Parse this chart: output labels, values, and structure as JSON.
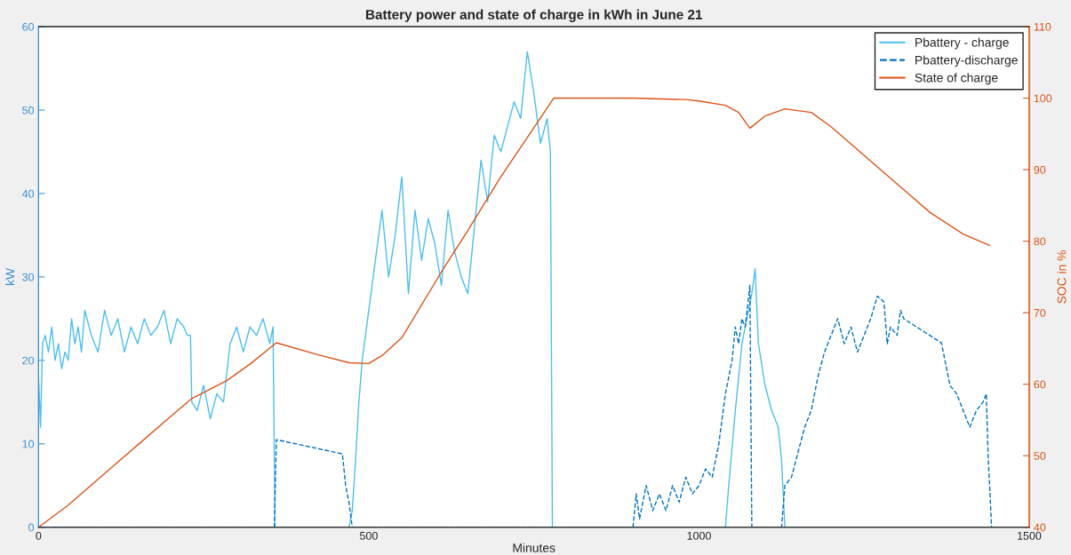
{
  "chart_data": {
    "type": "line",
    "title": "Battery power and state of charge in kWh in June 21",
    "xlabel": "Minutes",
    "ylabel": "kW",
    "y2label": "SOC in %",
    "xlim": [
      0,
      1500
    ],
    "xticks": [
      0,
      500,
      1000,
      1500
    ],
    "ylim": [
      0,
      60
    ],
    "yticks": [
      0,
      10,
      20,
      30,
      40,
      50,
      60
    ],
    "y2lim": [
      40,
      110
    ],
    "y2ticks": [
      40,
      50,
      60,
      70,
      80,
      90,
      100,
      110
    ],
    "grid": false,
    "legend": "top right",
    "marker": "none",
    "series": [
      {
        "name": "Pbattery - charge",
        "color": "#4dbeee",
        "line_style": "solid",
        "x": [
          0,
          3,
          6,
          10,
          15,
          20,
          25,
          30,
          35,
          40,
          45,
          50,
          55,
          60,
          65,
          70,
          80,
          90,
          100,
          110,
          120,
          130,
          140,
          150,
          160,
          170,
          180,
          190,
          200,
          210,
          220,
          225,
          230,
          232,
          240,
          250,
          260,
          270,
          280,
          290,
          300,
          310,
          320,
          330,
          340,
          350,
          355,
          358,
          470,
          475,
          480,
          485,
          490,
          500,
          510,
          520,
          530,
          540,
          550,
          560,
          570,
          580,
          590,
          600,
          610,
          620,
          630,
          640,
          650,
          660,
          670,
          680,
          690,
          700,
          710,
          720,
          730,
          740,
          750,
          760,
          770,
          775,
          778,
          1040,
          1045,
          1055,
          1065,
          1075,
          1080,
          1085,
          1090,
          1100,
          1110,
          1120,
          1125,
          1130,
          1440
        ],
        "values": [
          18,
          12,
          22,
          23,
          21,
          24,
          20,
          22,
          19,
          21,
          20,
          25,
          22,
          24,
          21,
          26,
          23,
          21,
          26,
          23,
          25,
          21,
          24,
          22,
          25,
          23,
          24,
          26,
          22,
          25,
          24,
          23,
          23,
          15,
          14,
          17,
          13,
          16,
          15,
          22,
          24,
          21,
          24,
          23,
          25,
          22,
          24,
          0,
          0,
          2,
          8,
          15,
          20,
          26,
          32,
          38,
          30,
          35,
          42,
          28,
          38,
          32,
          37,
          34,
          29,
          38,
          33,
          30,
          28,
          36,
          44,
          39,
          47,
          45,
          48,
          51,
          49,
          57,
          52,
          46,
          49,
          45,
          0,
          0,
          5,
          14,
          22,
          26,
          28,
          31,
          22,
          17,
          14,
          12,
          8,
          0,
          0
        ]
      },
      {
        "name": "Pbattery-discharge",
        "color": "#0072bd",
        "line_style": "dashed",
        "x": [
          0,
          357,
          360,
          460,
          465,
          470,
          475,
          900,
          905,
          910,
          920,
          930,
          940,
          950,
          960,
          970,
          980,
          990,
          1000,
          1010,
          1020,
          1030,
          1040,
          1050,
          1055,
          1060,
          1065,
          1070,
          1077,
          1080,
          1125,
          1130,
          1140,
          1150,
          1160,
          1170,
          1180,
          1190,
          1200,
          1210,
          1220,
          1230,
          1240,
          1250,
          1260,
          1270,
          1280,
          1285,
          1290,
          1300,
          1305,
          1310,
          1367,
          1375,
          1380,
          1390,
          1400,
          1410,
          1420,
          1430,
          1435,
          1438,
          1440,
          1443
        ],
        "values": [
          0,
          0,
          10.5,
          8.8,
          5,
          3,
          0,
          0,
          4,
          1,
          5,
          2,
          4,
          2,
          5,
          3,
          6,
          4,
          5,
          7,
          6,
          10,
          16,
          20,
          24,
          22,
          25,
          24,
          29,
          0,
          0,
          5,
          6,
          9,
          12,
          14,
          18,
          21,
          23,
          25,
          22,
          24,
          21,
          23,
          25,
          27.7,
          27,
          22,
          24,
          23,
          26,
          25,
          22.1,
          19,
          17,
          16,
          14,
          12,
          14,
          15,
          16,
          8,
          5,
          0
        ]
      },
      {
        "name": "State of charge",
        "color": "#d95319",
        "line_style": "solid",
        "axis": "y2",
        "x": [
          0,
          45,
          100,
          150,
          200,
          232,
          285,
          320,
          360,
          420,
          470,
          500,
          520,
          550,
          610,
          650,
          700,
          780,
          900,
          980,
          1000,
          1040,
          1060,
          1077,
          1100,
          1130,
          1170,
          1200,
          1250,
          1300,
          1350,
          1400,
          1440
        ],
        "values": [
          40,
          43.1,
          47.5,
          51.5,
          55.5,
          58,
          60.5,
          62.8,
          65.8,
          64.2,
          63,
          62.9,
          64,
          66.5,
          75.7,
          81.5,
          89,
          100,
          100,
          99.8,
          99.6,
          99,
          98,
          95.8,
          97.5,
          98.5,
          98,
          96,
          92,
          88,
          84,
          81,
          79.4
        ]
      }
    ]
  }
}
